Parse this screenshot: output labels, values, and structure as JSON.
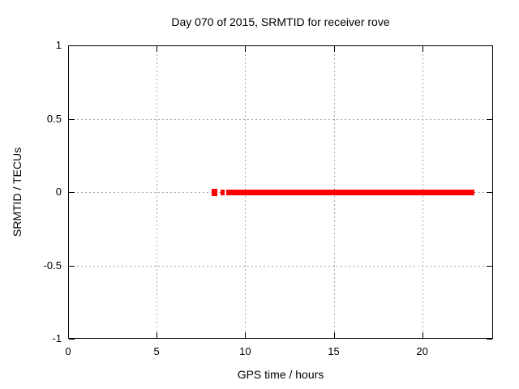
{
  "chart_data": {
    "type": "scatter",
    "title": "Day 070 of 2015, SRMTID for receiver rove",
    "xlabel": "GPS time / hours",
    "ylabel": "SRMTID / TECUs",
    "xlim": [
      0,
      24
    ],
    "ylim": [
      -1,
      1
    ],
    "xticks": [
      {
        "value": 0,
        "label": "0"
      },
      {
        "value": 5,
        "label": "5"
      },
      {
        "value": 10,
        "label": "10"
      },
      {
        "value": 15,
        "label": "15"
      },
      {
        "value": 20,
        "label": "20"
      }
    ],
    "yticks": [
      {
        "value": 1,
        "label": "1"
      },
      {
        "value": 0.5,
        "label": "0.5"
      },
      {
        "value": 0,
        "label": "0"
      },
      {
        "value": -0.5,
        "label": "-0.5"
      },
      {
        "value": -1,
        "label": "-1"
      }
    ],
    "grid": true,
    "legend": "none",
    "series": [
      {
        "name": "SRMTID",
        "color": "#ff0000",
        "style": "dense points",
        "y_value": 0,
        "x_segments": [
          {
            "x_start": 8.1,
            "x_end": 8.42
          },
          {
            "x_start": 8.62,
            "x_end": 8.82
          },
          {
            "x_start": 8.93,
            "x_end": 22.95
          }
        ]
      }
    ]
  },
  "colors": {
    "background": "#ffffff",
    "border": "#000000",
    "grid": "#a8a8a8",
    "text": "#000000",
    "series": "#ff0000"
  }
}
